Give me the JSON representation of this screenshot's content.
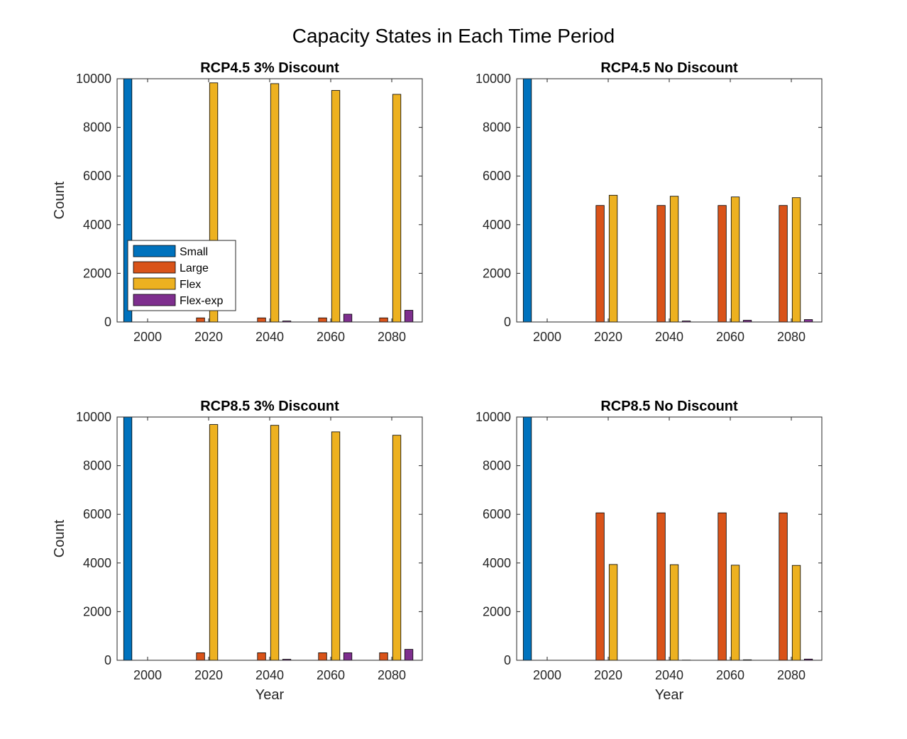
{
  "figure_title": "Capacity States in Each Time Period",
  "colors": {
    "Small": "#0072BD",
    "Large": "#D95319",
    "Flex": "#EDB120",
    "Flex-exp": "#7E2F8E"
  },
  "chart_data": [
    {
      "type": "bar",
      "title": "RCP4.5 3% Discount",
      "xlabel": "",
      "ylabel": "Count",
      "categories": [
        "2000",
        "2020",
        "2040",
        "2060",
        "2080"
      ],
      "ylim": [
        0,
        10000
      ],
      "yticks": [
        0,
        2000,
        4000,
        6000,
        8000,
        10000
      ],
      "legend": "inside-lower-left",
      "series": [
        {
          "name": "Small",
          "values": [
            10000,
            0,
            0,
            0,
            0
          ]
        },
        {
          "name": "Large",
          "values": [
            0,
            170,
            170,
            170,
            170
          ]
        },
        {
          "name": "Flex",
          "values": [
            0,
            9830,
            9800,
            9520,
            9360
          ]
        },
        {
          "name": "Flex-exp",
          "values": [
            0,
            0,
            40,
            320,
            480
          ]
        }
      ]
    },
    {
      "type": "bar",
      "title": "RCP4.5 No Discount",
      "xlabel": "",
      "ylabel": "",
      "categories": [
        "2000",
        "2020",
        "2040",
        "2060",
        "2080"
      ],
      "ylim": [
        0,
        10000
      ],
      "yticks": [
        0,
        2000,
        4000,
        6000,
        8000,
        10000
      ],
      "series": [
        {
          "name": "Small",
          "values": [
            10000,
            0,
            0,
            0,
            0
          ]
        },
        {
          "name": "Large",
          "values": [
            0,
            4790,
            4790,
            4790,
            4790
          ]
        },
        {
          "name": "Flex",
          "values": [
            0,
            5210,
            5170,
            5140,
            5110
          ]
        },
        {
          "name": "Flex-exp",
          "values": [
            0,
            0,
            40,
            70,
            100
          ]
        }
      ]
    },
    {
      "type": "bar",
      "title": "RCP8.5 3% Discount",
      "xlabel": "Year",
      "ylabel": "Count",
      "categories": [
        "2000",
        "2020",
        "2040",
        "2060",
        "2080"
      ],
      "ylim": [
        0,
        10000
      ],
      "yticks": [
        0,
        2000,
        4000,
        6000,
        8000,
        10000
      ],
      "series": [
        {
          "name": "Small",
          "values": [
            10000,
            0,
            0,
            0,
            0
          ]
        },
        {
          "name": "Large",
          "values": [
            0,
            310,
            310,
            310,
            310
          ]
        },
        {
          "name": "Flex",
          "values": [
            0,
            9690,
            9660,
            9390,
            9250
          ]
        },
        {
          "name": "Flex-exp",
          "values": [
            0,
            0,
            40,
            310,
            450
          ]
        }
      ]
    },
    {
      "type": "bar",
      "title": "RCP8.5 No Discount",
      "xlabel": "Year",
      "ylabel": "",
      "categories": [
        "2000",
        "2020",
        "2040",
        "2060",
        "2080"
      ],
      "ylim": [
        0,
        10000
      ],
      "yticks": [
        0,
        2000,
        4000,
        6000,
        8000,
        10000
      ],
      "series": [
        {
          "name": "Small",
          "values": [
            10000,
            0,
            0,
            0,
            0
          ]
        },
        {
          "name": "Large",
          "values": [
            0,
            6060,
            6060,
            6060,
            6060
          ]
        },
        {
          "name": "Flex",
          "values": [
            0,
            3940,
            3930,
            3910,
            3900
          ]
        },
        {
          "name": "Flex-exp",
          "values": [
            0,
            0,
            10,
            20,
            50
          ]
        }
      ]
    }
  ]
}
